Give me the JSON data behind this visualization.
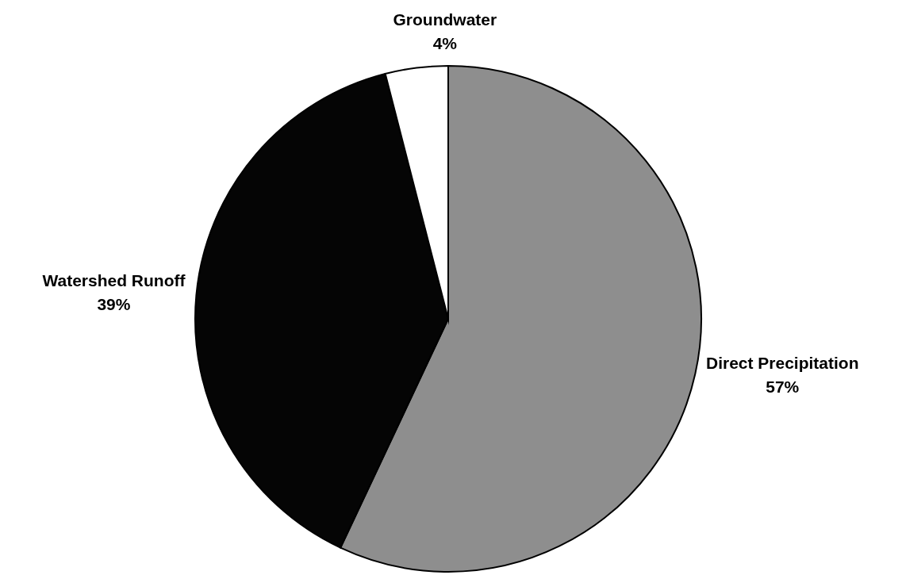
{
  "chart_data": {
    "type": "pie",
    "categories": [
      "Direct Precipitation",
      "Watershed Runoff",
      "Groundwater"
    ],
    "values": [
      57,
      39,
      4
    ],
    "colors": [
      "#8e8e8e",
      "#050505",
      "#ffffff"
    ],
    "value_labels": [
      "57%",
      "39%",
      "4%"
    ]
  }
}
